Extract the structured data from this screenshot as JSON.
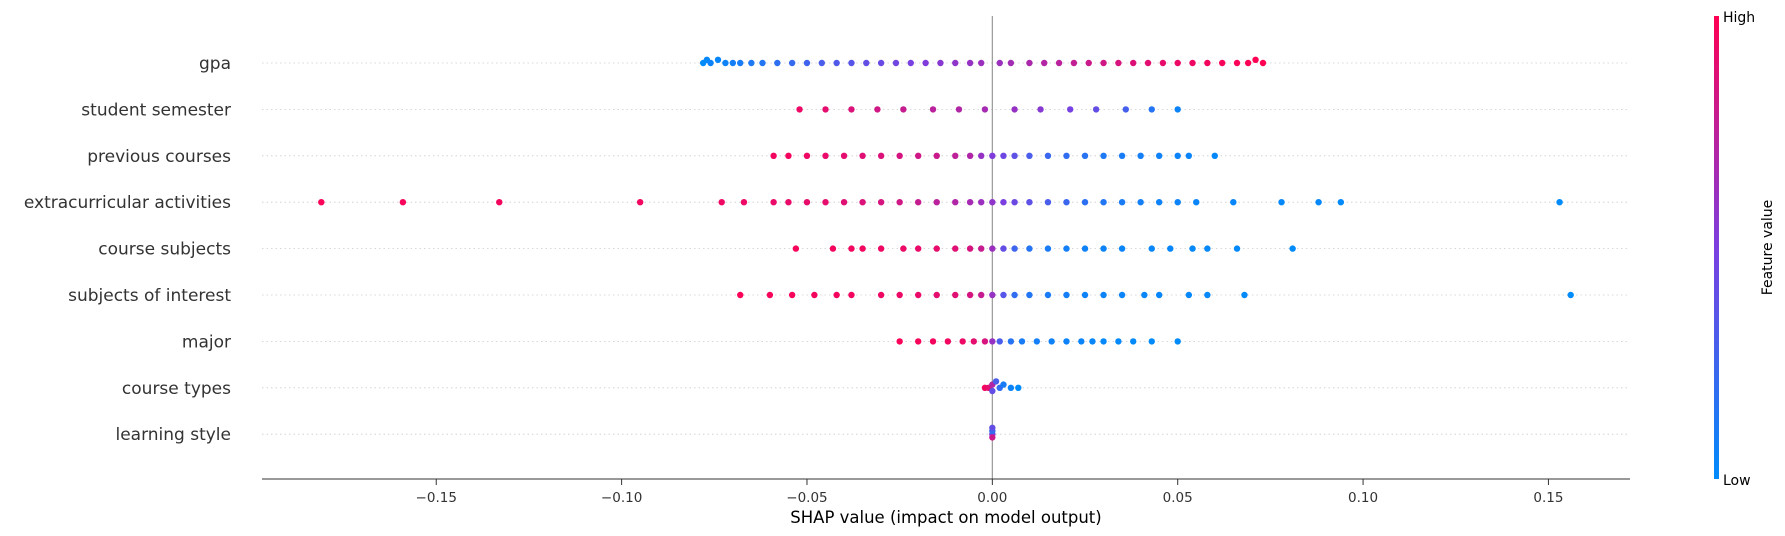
{
  "chart_data": {
    "type": "scatter",
    "subtype": "shap-beeswarm-summary",
    "title": "",
    "xlabel": "SHAP value (impact on model output)",
    "xlim": [
      -0.197,
      0.172
    ],
    "xticks": [
      -0.15,
      -0.1,
      -0.05,
      0.0,
      0.05,
      0.1,
      0.15
    ],
    "xtick_labels": [
      "−0.15",
      "−0.10",
      "−0.05",
      "0.00",
      "0.05",
      "0.10",
      "0.15"
    ],
    "grid": false,
    "colorbar": {
      "label": "Feature value",
      "high_label": "High",
      "low_label": "Low",
      "low_color": "#008bfb",
      "high_color": "#ff0052"
    },
    "features": [
      {
        "name": "gpa",
        "points": [
          [
            -0.078,
            0.0
          ],
          [
            -0.077,
            0.02
          ],
          [
            -0.076,
            0.05
          ],
          [
            -0.074,
            0.03
          ],
          [
            -0.072,
            0.06
          ],
          [
            -0.07,
            0.08
          ],
          [
            -0.068,
            0.1
          ],
          [
            -0.065,
            0.12
          ],
          [
            -0.062,
            0.14
          ],
          [
            -0.058,
            0.18
          ],
          [
            -0.054,
            0.22
          ],
          [
            -0.05,
            0.26
          ],
          [
            -0.046,
            0.3
          ],
          [
            -0.042,
            0.33
          ],
          [
            -0.038,
            0.36
          ],
          [
            -0.034,
            0.4
          ],
          [
            -0.03,
            0.43
          ],
          [
            -0.026,
            0.46
          ],
          [
            -0.022,
            0.49
          ],
          [
            -0.018,
            0.52
          ],
          [
            -0.014,
            0.55
          ],
          [
            -0.01,
            0.58
          ],
          [
            -0.006,
            0.6
          ],
          [
            -0.003,
            0.62
          ],
          [
            0.002,
            0.62
          ],
          [
            0.005,
            0.65
          ],
          [
            0.01,
            0.68
          ],
          [
            0.014,
            0.71
          ],
          [
            0.018,
            0.74
          ],
          [
            0.022,
            0.77
          ],
          [
            0.026,
            0.8
          ],
          [
            0.03,
            0.82
          ],
          [
            0.034,
            0.85
          ],
          [
            0.038,
            0.87
          ],
          [
            0.042,
            0.89
          ],
          [
            0.046,
            0.91
          ],
          [
            0.05,
            0.93
          ],
          [
            0.054,
            0.94
          ],
          [
            0.058,
            0.96
          ],
          [
            0.062,
            0.97
          ],
          [
            0.066,
            0.98
          ],
          [
            0.069,
            0.99
          ],
          [
            0.071,
            1.0
          ],
          [
            0.073,
            1.0
          ]
        ]
      },
      {
        "name": "student semester",
        "points": [
          [
            -0.052,
            0.93
          ],
          [
            -0.045,
            0.9
          ],
          [
            -0.038,
            0.86
          ],
          [
            -0.031,
            0.82
          ],
          [
            -0.024,
            0.78
          ],
          [
            -0.016,
            0.74
          ],
          [
            -0.009,
            0.7
          ],
          [
            -0.002,
            0.66
          ],
          [
            0.006,
            0.6
          ],
          [
            0.013,
            0.55
          ],
          [
            0.021,
            0.48
          ],
          [
            0.028,
            0.4
          ],
          [
            0.036,
            0.28
          ],
          [
            0.043,
            0.15
          ],
          [
            0.05,
            0.05
          ]
        ]
      },
      {
        "name": "previous courses",
        "points": [
          [
            -0.059,
            0.95
          ],
          [
            -0.055,
            0.96
          ],
          [
            -0.05,
            0.94
          ],
          [
            -0.045,
            0.92
          ],
          [
            -0.04,
            0.9
          ],
          [
            -0.035,
            0.88
          ],
          [
            -0.03,
            0.86
          ],
          [
            -0.025,
            0.84
          ],
          [
            -0.02,
            0.82
          ],
          [
            -0.015,
            0.8
          ],
          [
            -0.01,
            0.75
          ],
          [
            -0.006,
            0.7
          ],
          [
            -0.003,
            0.6
          ],
          [
            0.0,
            0.52
          ],
          [
            0.003,
            0.45
          ],
          [
            0.006,
            0.38
          ],
          [
            0.01,
            0.3
          ],
          [
            0.015,
            0.24
          ],
          [
            0.02,
            0.2
          ],
          [
            0.025,
            0.16
          ],
          [
            0.03,
            0.12
          ],
          [
            0.035,
            0.1
          ],
          [
            0.04,
            0.08
          ],
          [
            0.045,
            0.06
          ],
          [
            0.05,
            0.05
          ],
          [
            0.053,
            0.04
          ],
          [
            0.06,
            0.02
          ]
        ]
      },
      {
        "name": "extracurricular activities",
        "points": [
          [
            -0.181,
            0.98
          ],
          [
            -0.159,
            0.97
          ],
          [
            -0.133,
            0.96
          ],
          [
            -0.095,
            0.95
          ],
          [
            -0.073,
            0.94
          ],
          [
            -0.067,
            0.93
          ],
          [
            -0.059,
            0.92
          ],
          [
            -0.055,
            0.92
          ],
          [
            -0.05,
            0.91
          ],
          [
            -0.045,
            0.9
          ],
          [
            -0.04,
            0.88
          ],
          [
            -0.035,
            0.86
          ],
          [
            -0.03,
            0.84
          ],
          [
            -0.025,
            0.82
          ],
          [
            -0.02,
            0.78
          ],
          [
            -0.015,
            0.74
          ],
          [
            -0.01,
            0.7
          ],
          [
            -0.006,
            0.66
          ],
          [
            -0.003,
            0.62
          ],
          [
            0.0,
            0.58
          ],
          [
            0.003,
            0.5
          ],
          [
            0.006,
            0.44
          ],
          [
            0.01,
            0.38
          ],
          [
            0.015,
            0.3
          ],
          [
            0.02,
            0.24
          ],
          [
            0.025,
            0.18
          ],
          [
            0.03,
            0.14
          ],
          [
            0.035,
            0.1
          ],
          [
            0.04,
            0.08
          ],
          [
            0.045,
            0.06
          ],
          [
            0.05,
            0.05
          ],
          [
            0.055,
            0.04
          ],
          [
            0.065,
            0.03
          ],
          [
            0.078,
            0.02
          ],
          [
            0.088,
            0.02
          ],
          [
            0.094,
            0.01
          ],
          [
            0.153,
            0.0
          ]
        ]
      },
      {
        "name": "course subjects",
        "points": [
          [
            -0.053,
            0.97
          ],
          [
            -0.043,
            0.96
          ],
          [
            -0.038,
            0.95
          ],
          [
            -0.035,
            0.95
          ],
          [
            -0.03,
            0.94
          ],
          [
            -0.024,
            0.93
          ],
          [
            -0.02,
            0.92
          ],
          [
            -0.015,
            0.91
          ],
          [
            -0.01,
            0.88
          ],
          [
            -0.006,
            0.84
          ],
          [
            -0.003,
            0.78
          ],
          [
            0.0,
            0.62
          ],
          [
            0.003,
            0.4
          ],
          [
            0.006,
            0.25
          ],
          [
            0.01,
            0.15
          ],
          [
            0.015,
            0.1
          ],
          [
            0.02,
            0.08
          ],
          [
            0.025,
            0.06
          ],
          [
            0.03,
            0.05
          ],
          [
            0.035,
            0.04
          ],
          [
            0.043,
            0.03
          ],
          [
            0.048,
            0.03
          ],
          [
            0.054,
            0.02
          ],
          [
            0.058,
            0.02
          ],
          [
            0.066,
            0.01
          ],
          [
            0.081,
            0.0
          ]
        ]
      },
      {
        "name": "subjects of interest",
        "points": [
          [
            -0.068,
            0.98
          ],
          [
            -0.06,
            0.97
          ],
          [
            -0.054,
            0.97
          ],
          [
            -0.048,
            0.96
          ],
          [
            -0.042,
            0.96
          ],
          [
            -0.038,
            0.95
          ],
          [
            -0.03,
            0.94
          ],
          [
            -0.025,
            0.93
          ],
          [
            -0.02,
            0.92
          ],
          [
            -0.015,
            0.9
          ],
          [
            -0.01,
            0.88
          ],
          [
            -0.006,
            0.84
          ],
          [
            -0.003,
            0.78
          ],
          [
            0.0,
            0.6
          ],
          [
            0.003,
            0.35
          ],
          [
            0.006,
            0.2
          ],
          [
            0.01,
            0.14
          ],
          [
            0.015,
            0.1
          ],
          [
            0.02,
            0.08
          ],
          [
            0.025,
            0.06
          ],
          [
            0.03,
            0.05
          ],
          [
            0.035,
            0.04
          ],
          [
            0.041,
            0.03
          ],
          [
            0.045,
            0.03
          ],
          [
            0.053,
            0.02
          ],
          [
            0.058,
            0.02
          ],
          [
            0.068,
            0.01
          ],
          [
            0.156,
            0.0
          ]
        ]
      },
      {
        "name": "major",
        "points": [
          [
            -0.025,
            0.98
          ],
          [
            -0.02,
            0.97
          ],
          [
            -0.016,
            0.96
          ],
          [
            -0.012,
            0.95
          ],
          [
            -0.008,
            0.93
          ],
          [
            -0.005,
            0.9
          ],
          [
            -0.002,
            0.85
          ],
          [
            0.0,
            0.6
          ],
          [
            0.002,
            0.3
          ],
          [
            0.005,
            0.15
          ],
          [
            0.008,
            0.1
          ],
          [
            0.012,
            0.08
          ],
          [
            0.016,
            0.06
          ],
          [
            0.02,
            0.05
          ],
          [
            0.024,
            0.04
          ],
          [
            0.027,
            0.03
          ],
          [
            0.03,
            0.02
          ],
          [
            0.034,
            0.01
          ],
          [
            0.038,
            0.01
          ],
          [
            0.043,
            0.0
          ],
          [
            0.05,
            0.0
          ]
        ]
      },
      {
        "name": "course types",
        "points": [
          [
            -0.002,
            0.95
          ],
          [
            -0.001,
            0.9
          ],
          [
            0.0,
            0.7
          ],
          [
            0.0,
            0.4
          ],
          [
            0.001,
            0.3
          ],
          [
            0.002,
            0.2
          ],
          [
            0.003,
            0.1
          ],
          [
            0.005,
            0.05
          ],
          [
            0.007,
            0.0
          ]
        ]
      },
      {
        "name": "learning style",
        "points": [
          [
            0.0,
            0.5
          ],
          [
            0.0,
            0.2
          ],
          [
            0.0,
            0.8
          ],
          [
            0.0,
            0.4
          ]
        ]
      }
    ]
  }
}
